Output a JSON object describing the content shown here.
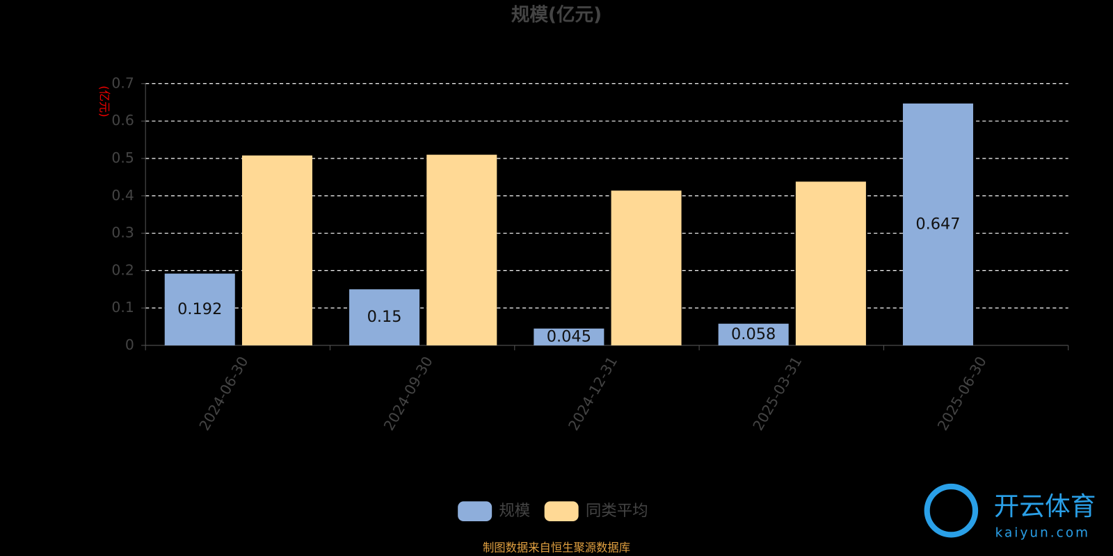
{
  "chart_data": {
    "type": "bar",
    "title": "规模(亿元)",
    "y_label": "(亿元)",
    "categories": [
      "2024-06-30",
      "2024-09-30",
      "2024-12-31",
      "2025-03-31",
      "2025-06-30"
    ],
    "series": [
      {
        "name": "规模",
        "color": "#8eaedb",
        "values": [
          0.192,
          0.15,
          0.045,
          0.058,
          0.647
        ]
      },
      {
        "name": "同类平均",
        "color": "#ffd995",
        "values": [
          0.508,
          0.51,
          0.414,
          0.438,
          null
        ]
      }
    ],
    "ylim": [
      0,
      0.7
    ],
    "yticks": [
      0,
      0.1,
      0.2,
      0.3,
      0.4,
      0.5,
      0.6,
      0.7
    ],
    "grid": true,
    "legend": "bottom",
    "source": "制图数据来自恒生聚源数据库",
    "watermark": {
      "name": "开云体育",
      "url": "kaiyun.com"
    }
  }
}
